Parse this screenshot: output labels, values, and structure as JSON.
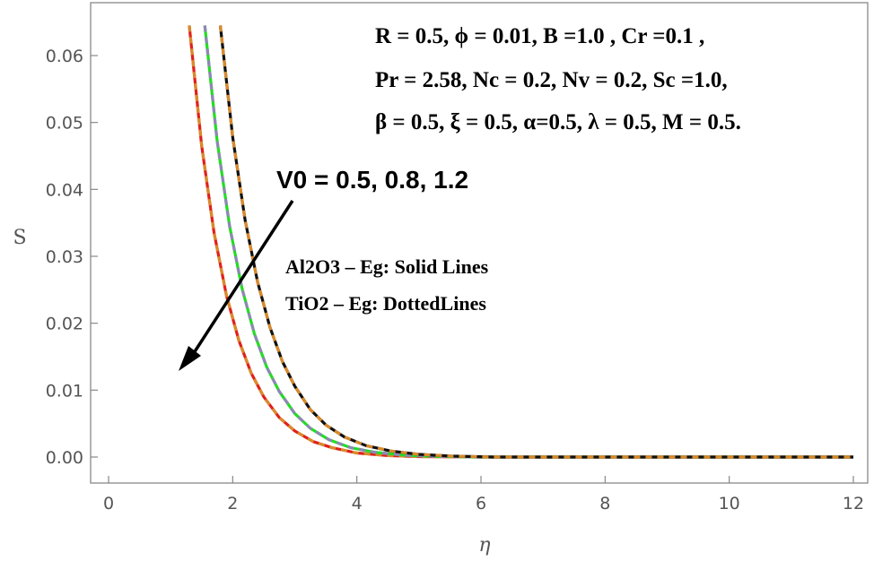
{
  "chart_data": {
    "type": "line",
    "xlabel": "η",
    "ylabel": "S",
    "xlim": [
      0,
      12
    ],
    "ylim": [
      -0.002,
      0.066
    ],
    "x_ticks": [
      "0",
      "2",
      "4",
      "6",
      "8",
      "10",
      "12"
    ],
    "y_ticks": [
      "0.00",
      "0.01",
      "0.02",
      "0.03",
      "0.04",
      "0.05",
      "0.06"
    ],
    "grid": false,
    "annotations": {
      "params": [
        "R = 0.5, ϕ = 0.01, B =1.0 , Cr =0.1 ,",
        "Pr = 2.58, Nc = 0.2, Nv = 0.2, Sc =1.0,",
        "β = 0.5, ξ = 0.5,  α=0.5, λ = 0.5, M = 0.5."
      ],
      "v0": "V0 =  0.5, 0.8, 1.2",
      "legend": [
        "Al2O3 – Eg: Solid Lines",
        "TiO2 – Eg: DottedLines"
      ]
    },
    "series": [
      {
        "V0": 0.5,
        "solid_color": "#e0201c",
        "dash_color": "#d98a2b",
        "x": [
          1.3,
          1.5,
          1.7,
          1.9,
          2.1,
          2.3,
          2.5,
          2.75,
          3.0,
          3.3,
          3.6,
          4.0,
          4.5,
          5.0,
          6.0,
          8.0,
          10.0,
          12.0
        ],
        "y": [
          0.0645,
          0.0465,
          0.0335,
          0.0241,
          0.0174,
          0.0125,
          0.009,
          0.0059,
          0.0039,
          0.0023,
          0.0014,
          0.0006,
          0.00022,
          7e-05,
          0.0,
          0.0,
          0.0,
          0.0
        ]
      },
      {
        "V0": 0.8,
        "solid_color": "#22dd22",
        "dash_color": "#8f87b5",
        "x": [
          1.55,
          1.75,
          1.95,
          2.15,
          2.35,
          2.55,
          2.75,
          3.0,
          3.25,
          3.55,
          3.9,
          4.3,
          4.8,
          5.3,
          6.0,
          8.0,
          10.0,
          12.0
        ],
        "y": [
          0.0645,
          0.0472,
          0.0345,
          0.0252,
          0.0184,
          0.0134,
          0.0098,
          0.0065,
          0.0043,
          0.0026,
          0.0014,
          0.0007,
          0.00025,
          0.0001,
          0.0,
          0.0,
          0.0,
          0.0
        ]
      },
      {
        "V0": 1.2,
        "solid_color": "#111111",
        "dash_color": "#d98a2b",
        "x": [
          1.8,
          2.0,
          2.2,
          2.4,
          2.6,
          2.8,
          3.0,
          3.25,
          3.5,
          3.8,
          4.15,
          4.55,
          5.0,
          5.5,
          6.2,
          8.0,
          10.0,
          12.0
        ],
        "y": [
          0.0645,
          0.0478,
          0.0354,
          0.0262,
          0.0194,
          0.0143,
          0.0106,
          0.0071,
          0.0048,
          0.003,
          0.0017,
          0.0009,
          0.0004,
          0.00015,
          0.0,
          0.0,
          0.0,
          0.0
        ]
      }
    ]
  }
}
